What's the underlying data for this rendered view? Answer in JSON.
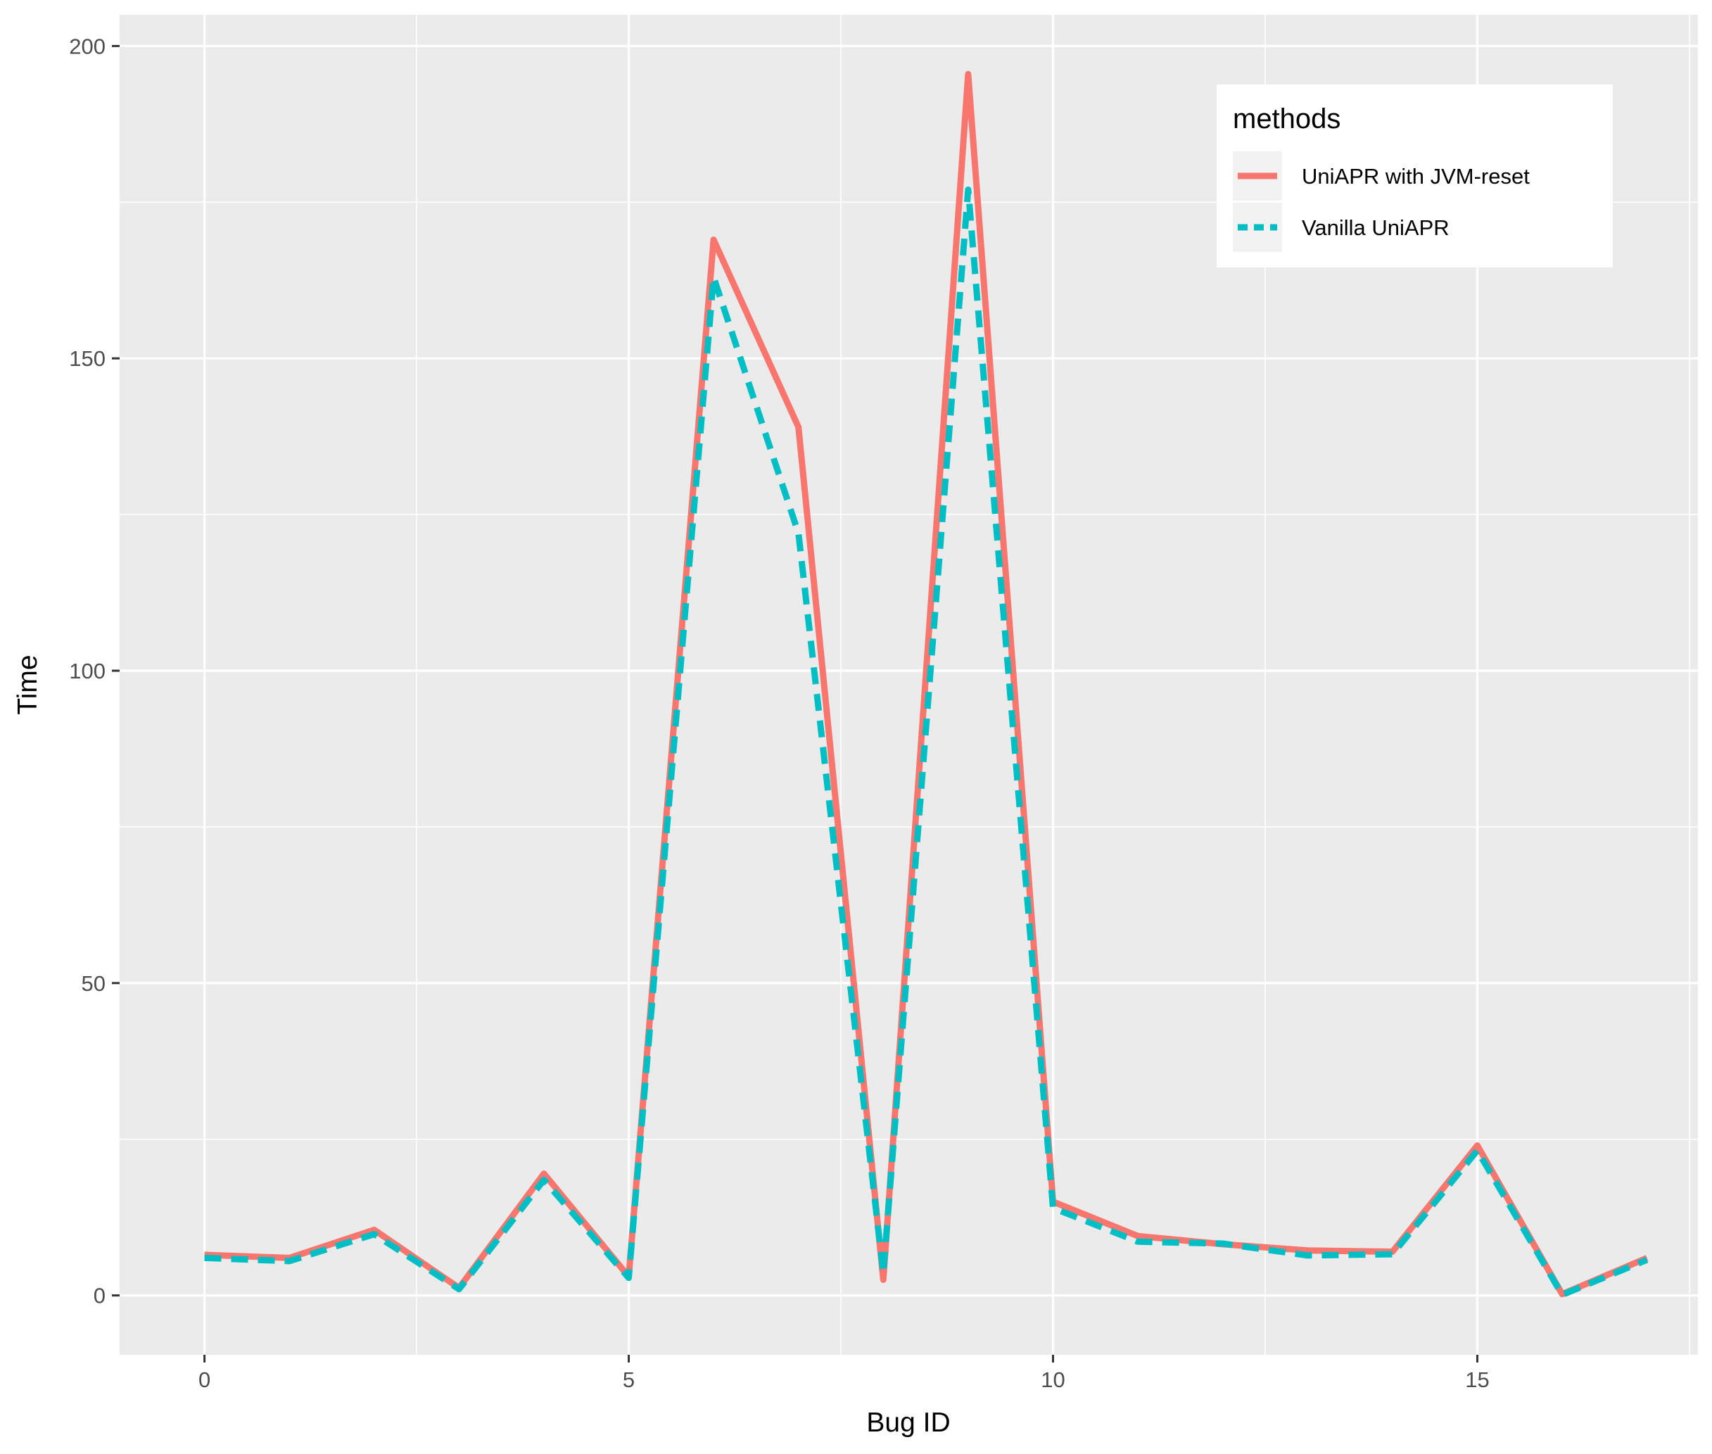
{
  "chart_data": {
    "type": "line",
    "xlabel": "Bug ID",
    "ylabel": "Time",
    "xlim": [
      -1,
      17.6
    ],
    "ylim": [
      -9.5,
      205
    ],
    "x_major_ticks": [
      0,
      5,
      10,
      15
    ],
    "x_minor_ticks": [
      2.5,
      7.5,
      12.5,
      17.5
    ],
    "y_major_ticks": [
      0,
      50,
      100,
      150,
      200
    ],
    "y_minor_ticks": [
      25,
      75,
      125,
      175
    ],
    "grid": true,
    "legend": {
      "title": "methods",
      "position": "top-right"
    },
    "x": [
      0,
      1,
      2,
      3,
      4,
      5,
      6,
      7,
      8,
      9,
      10,
      11,
      12,
      13,
      14,
      15,
      16,
      17
    ],
    "series": [
      {
        "name": "UniAPR with JVM-reset",
        "color": "#F8766D",
        "dash": "solid",
        "values": [
          6.5,
          6,
          10.5,
          1.2,
          19.5,
          3,
          169,
          139,
          2.5,
          195.5,
          15,
          9.5,
          8.2,
          7.2,
          7,
          24,
          0.2,
          6
        ]
      },
      {
        "name": "Vanilla UniAPR",
        "color": "#00BFC4",
        "dash": "dashed",
        "values": [
          6,
          5.5,
          9.8,
          1,
          18.5,
          2.8,
          163,
          122,
          3.5,
          177,
          14,
          8.6,
          8.3,
          6.4,
          6.6,
          23.2,
          0.1,
          5.7
        ]
      }
    ]
  }
}
